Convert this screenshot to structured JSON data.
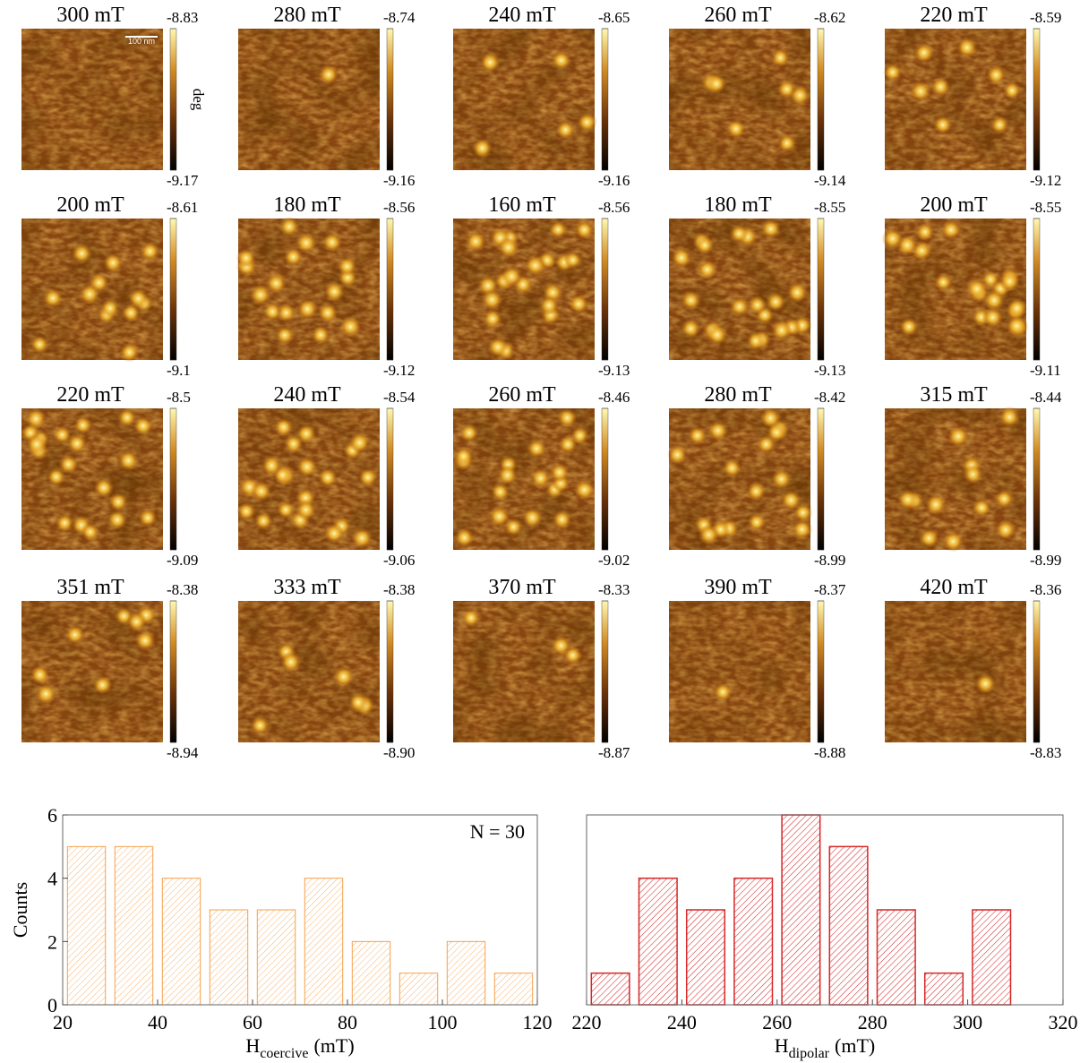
{
  "chart_data": [
    {
      "type": "image",
      "title": "300 mT",
      "cticks": [
        -8.83,
        -9.17
      ],
      "scale_bar": "100 nm",
      "cbar_label": "deg"
    },
    {
      "type": "image",
      "title": "280 mT",
      "cticks": [
        -8.74,
        -9.16
      ]
    },
    {
      "type": "image",
      "title": "240 mT",
      "cticks": [
        -8.65,
        -9.16
      ]
    },
    {
      "type": "image",
      "title": "260 mT",
      "cticks": [
        -8.62,
        -9.14
      ]
    },
    {
      "type": "image",
      "title": "220 mT",
      "cticks": [
        -8.59,
        -9.12
      ]
    },
    {
      "type": "image",
      "title": "200 mT",
      "cticks": [
        -8.61,
        -9.1
      ]
    },
    {
      "type": "image",
      "title": "180 mT",
      "cticks": [
        -8.56,
        -9.12
      ]
    },
    {
      "type": "image",
      "title": "160 mT",
      "cticks": [
        -8.56,
        -9.13
      ]
    },
    {
      "type": "image",
      "title": "180 mT",
      "cticks": [
        -8.55,
        -9.13
      ]
    },
    {
      "type": "image",
      "title": "200 mT",
      "cticks": [
        -8.55,
        -9.11
      ]
    },
    {
      "type": "image",
      "title": "220 mT",
      "cticks": [
        -8.5,
        -9.09
      ]
    },
    {
      "type": "image",
      "title": "240 mT",
      "cticks": [
        -8.54,
        -9.06
      ]
    },
    {
      "type": "image",
      "title": "260 mT",
      "cticks": [
        -8.46,
        -9.02
      ]
    },
    {
      "type": "image",
      "title": "280 mT",
      "cticks": [
        -8.42,
        -8.99
      ]
    },
    {
      "type": "image",
      "title": "315 mT",
      "cticks": [
        -8.44,
        -8.99
      ]
    },
    {
      "type": "image",
      "title": "351 mT",
      "cticks": [
        -8.38,
        -8.94
      ]
    },
    {
      "type": "image",
      "title": "333 mT",
      "cticks": [
        -8.38,
        {
          "value": -8.9,
          "label": "-8.90"
        }
      ]
    },
    {
      "type": "image",
      "title": "370 mT",
      "cticks": [
        -8.33,
        -8.87
      ]
    },
    {
      "type": "image",
      "title": "390 mT",
      "cticks": [
        -8.37,
        -8.88
      ]
    },
    {
      "type": "image",
      "title": "420 mT",
      "cticks": [
        -8.36,
        -8.83
      ]
    },
    {
      "type": "histogram",
      "bins": [
        20,
        30,
        40,
        50,
        60,
        70,
        80,
        90,
        100,
        110,
        120
      ],
      "values": [
        5,
        5,
        4,
        3,
        3,
        4,
        2,
        1,
        2,
        1
      ],
      "color": "#f5a04a",
      "xlim": [
        20,
        120
      ],
      "xticks": [
        20,
        40,
        60,
        80,
        100,
        120
      ],
      "ylim": [
        0,
        6
      ],
      "yticks": [
        0,
        2,
        4,
        6
      ],
      "ylabel": "Counts",
      "xlabel": "H",
      "xlabel_sub": "coercive",
      "xlabel_unit": "(mT)",
      "annotation": "N = 30"
    },
    {
      "type": "histogram",
      "bins": [
        220,
        230,
        240,
        250,
        260,
        270,
        280,
        290,
        300,
        310
      ],
      "values": [
        1,
        4,
        3,
        4,
        6,
        5,
        3,
        1,
        3
      ],
      "color": "#d62728",
      "xlim": [
        220,
        320
      ],
      "xticks": [
        220,
        240,
        260,
        280,
        300,
        320
      ],
      "ylim": [
        0,
        6
      ],
      "xlabel": "H",
      "xlabel_sub": "dipolar",
      "xlabel_unit": "(mT)"
    }
  ]
}
